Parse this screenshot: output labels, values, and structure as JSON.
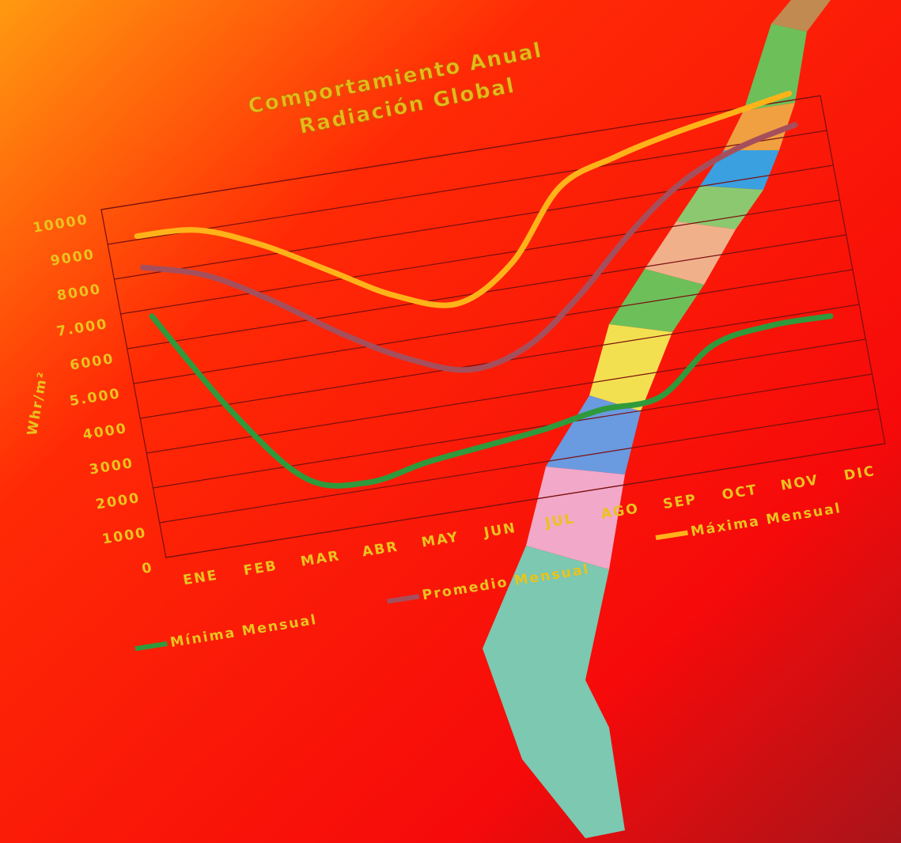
{
  "chart_data": {
    "type": "line",
    "title": "Comportamiento Anual",
    "subtitle": "Radiación Global",
    "y_label": "Whr/m²",
    "categories": [
      "ENE",
      "FEB",
      "MAR",
      "ABR",
      "MAY",
      "JUN",
      "JUL",
      "AGO",
      "SEP",
      "OCT",
      "NOV",
      "DIC"
    ],
    "series": [
      {
        "name": "Mínima Mensual",
        "color": "#2f9a3c",
        "values": [
          6800,
          3800,
          1600,
          1200,
          1500,
          1700,
          1900,
          2200,
          2300,
          3500,
          3800,
          3800
        ]
      },
      {
        "name": "Promedio Mensual",
        "color": "#a64f5c",
        "values": [
          8200,
          7700,
          6700,
          5500,
          4500,
          3900,
          4300,
          5500,
          7000,
          8200,
          8900,
          9300
        ]
      },
      {
        "name": "Máxima Mensual",
        "color": "#ffb319",
        "values": [
          9100,
          9000,
          8300,
          7300,
          6300,
          5800,
          6700,
          8600,
          9200,
          9600,
          9900,
          10200
        ]
      }
    ],
    "ylim": [
      0,
      10000
    ],
    "yticks": [
      0,
      1000,
      2000,
      3000,
      4000,
      {
        "value": 5000,
        "label": "5.000"
      },
      6000,
      {
        "value": 7000,
        "label": "7.000"
      },
      8000,
      9000,
      10000
    ],
    "grid": true
  }
}
